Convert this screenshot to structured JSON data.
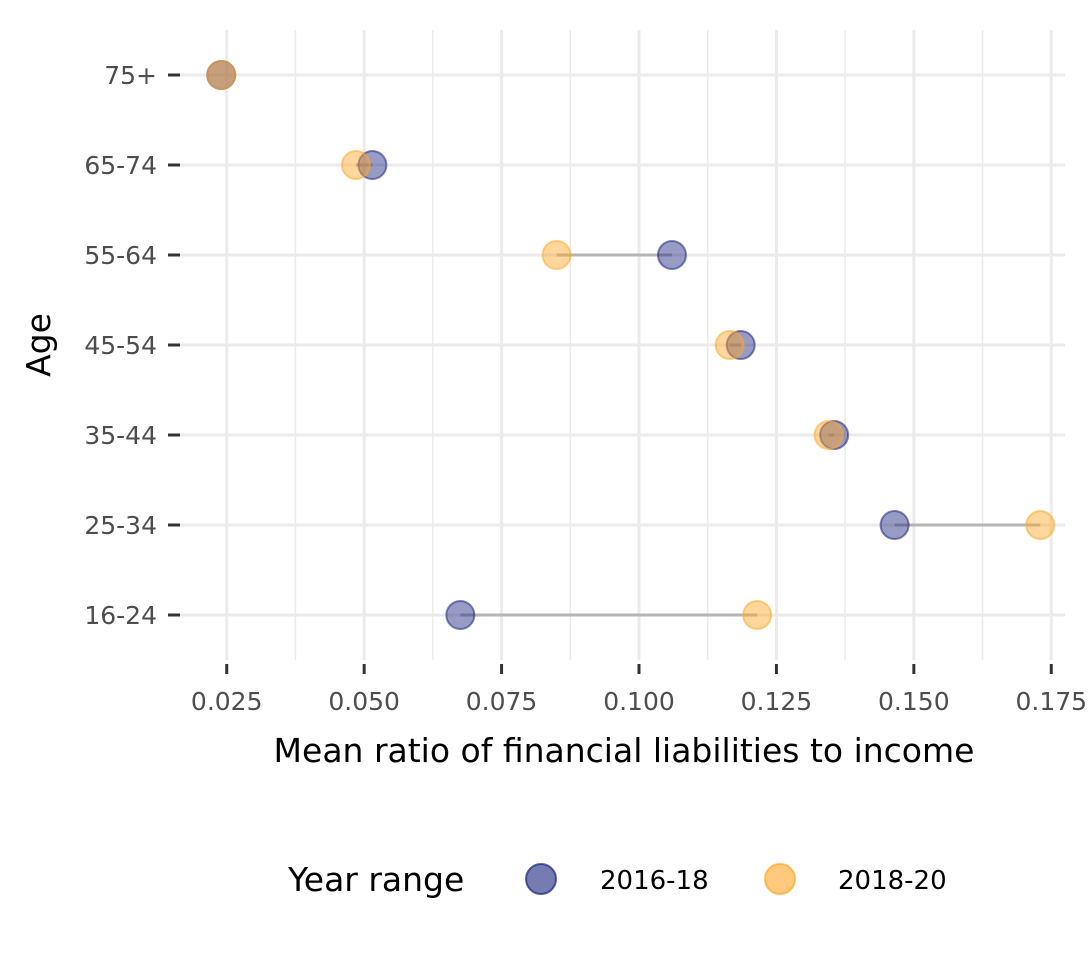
{
  "chart_data": {
    "type": "scatter",
    "subtype": "dumbbell",
    "xlabel": "Mean ratio of financial liabilities to income",
    "ylabel": "Age",
    "xlim": [
      0.0165,
      0.1775
    ],
    "x_ticks": [
      0.025,
      0.05,
      0.075,
      0.1,
      0.125,
      0.15,
      0.175
    ],
    "x_tick_labels": [
      "0.025",
      "0.050",
      "0.075",
      "0.100",
      "0.125",
      "0.150",
      "0.175"
    ],
    "categories": [
      "75+",
      "65-74",
      "55-64",
      "45-54",
      "35-44",
      "25-34",
      "16-24"
    ],
    "grid": true,
    "legend": {
      "title": "Year range",
      "position": "bottom"
    },
    "series": [
      {
        "name": "2016-18",
        "color": "#1a237e",
        "values": [
          0.024,
          0.0515,
          0.106,
          0.1185,
          0.1355,
          0.1465,
          0.0675
        ]
      },
      {
        "name": "2018-20",
        "color": "#ffa726",
        "values": [
          0.024,
          0.0485,
          0.085,
          0.1165,
          0.1345,
          0.173,
          0.1215
        ]
      }
    ],
    "segment_color": "#9e9e9e"
  }
}
